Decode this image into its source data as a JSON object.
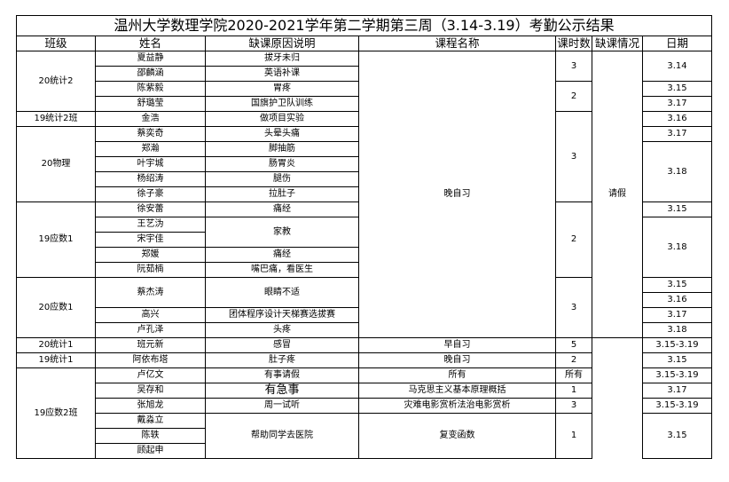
{
  "title": "温州大学数理学院2020-2021学年第二学期第三周（3.14-3.19）考勤公示结果",
  "headers": [
    "班级",
    "姓名",
    "缺课原因说明",
    "课程名称",
    "课时数",
    "缺课情况",
    "日期"
  ],
  "classes": [
    "20统计2",
    "19统计2班",
    "20物理",
    "19应数1",
    "20应数1",
    "20统计1",
    "19统计1",
    "19应数2班"
  ],
  "rows": [
    {
      "name": "夏益静",
      "reason": "拔牙未归",
      "course": "晚自习",
      "hours": "3",
      "status": "请假",
      "date": "3.14"
    },
    {
      "name": "邵麟涵",
      "reason": "英语补课"
    },
    {
      "name": "陈紫毅",
      "reason": "胃疼",
      "hours": "2",
      "date": "3.15"
    },
    {
      "name": "舒璐莹",
      "reason": "国旗护卫队训练",
      "date": "3.17"
    },
    {
      "name": "金浩",
      "reason": "做项目实验",
      "hours": "3",
      "date": "3.16"
    },
    {
      "name": "蔡奕奇",
      "reason": "头晕头痛",
      "date": "3.17"
    },
    {
      "name": "郑瀚",
      "reason": "脚抽筋",
      "date": "3.18"
    },
    {
      "name": "叶宇城",
      "reason": "肠胃炎"
    },
    {
      "name": "杨绍涛",
      "reason": "腿伤"
    },
    {
      "name": "徐子豪",
      "reason": "拉肚子"
    },
    {
      "name": "徐安蕾",
      "reason": "痛经",
      "hours": "2",
      "date": "3.15"
    },
    {
      "name": "王艺沩",
      "reason": "家教",
      "date": "3.18"
    },
    {
      "name": "宋宇佳"
    },
    {
      "name": "郑媛",
      "reason": "痛经"
    },
    {
      "name": "阮茹楠",
      "reason": "嘴巴痛，看医生"
    },
    {
      "name": "蔡杰涛",
      "reason": "眼睛不适",
      "hours": "3",
      "date": "3.15",
      "date2": "3.16"
    },
    {
      "name": "高兴",
      "reason": "团体程序设计天梯赛选拔赛",
      "date": "3.17"
    },
    {
      "name": "卢孔泽",
      "reason": "头疼",
      "date": "3.18"
    },
    {
      "name": "班元新",
      "reason": "感冒",
      "course": "早自习",
      "hours": "5",
      "date": "3.15-3.19"
    },
    {
      "name": "阿依布塔",
      "reason": "肚子疼",
      "course": "晚自习",
      "hours": "2",
      "date": "3.15"
    },
    {
      "name": "卢亿文",
      "reason": "有事请假",
      "course": "所有",
      "hours": "所有",
      "date": "3.15-3.19"
    },
    {
      "name": "吴存和",
      "reason": "有急事",
      "course": "马克思主义基本原理概括",
      "hours": "1",
      "date": "3.17"
    },
    {
      "name": "张旭龙",
      "reason": "周一试听",
      "course": "灾难电影赏析法治电影赏析",
      "hours": "3",
      "date": "3.15-3.19"
    },
    {
      "name": "戴淼立",
      "reason": "帮助同学去医院",
      "course": "复变函数",
      "hours": "1",
      "date": "3.15"
    },
    {
      "name": "陈轶"
    },
    {
      "name": "顾起申"
    }
  ]
}
